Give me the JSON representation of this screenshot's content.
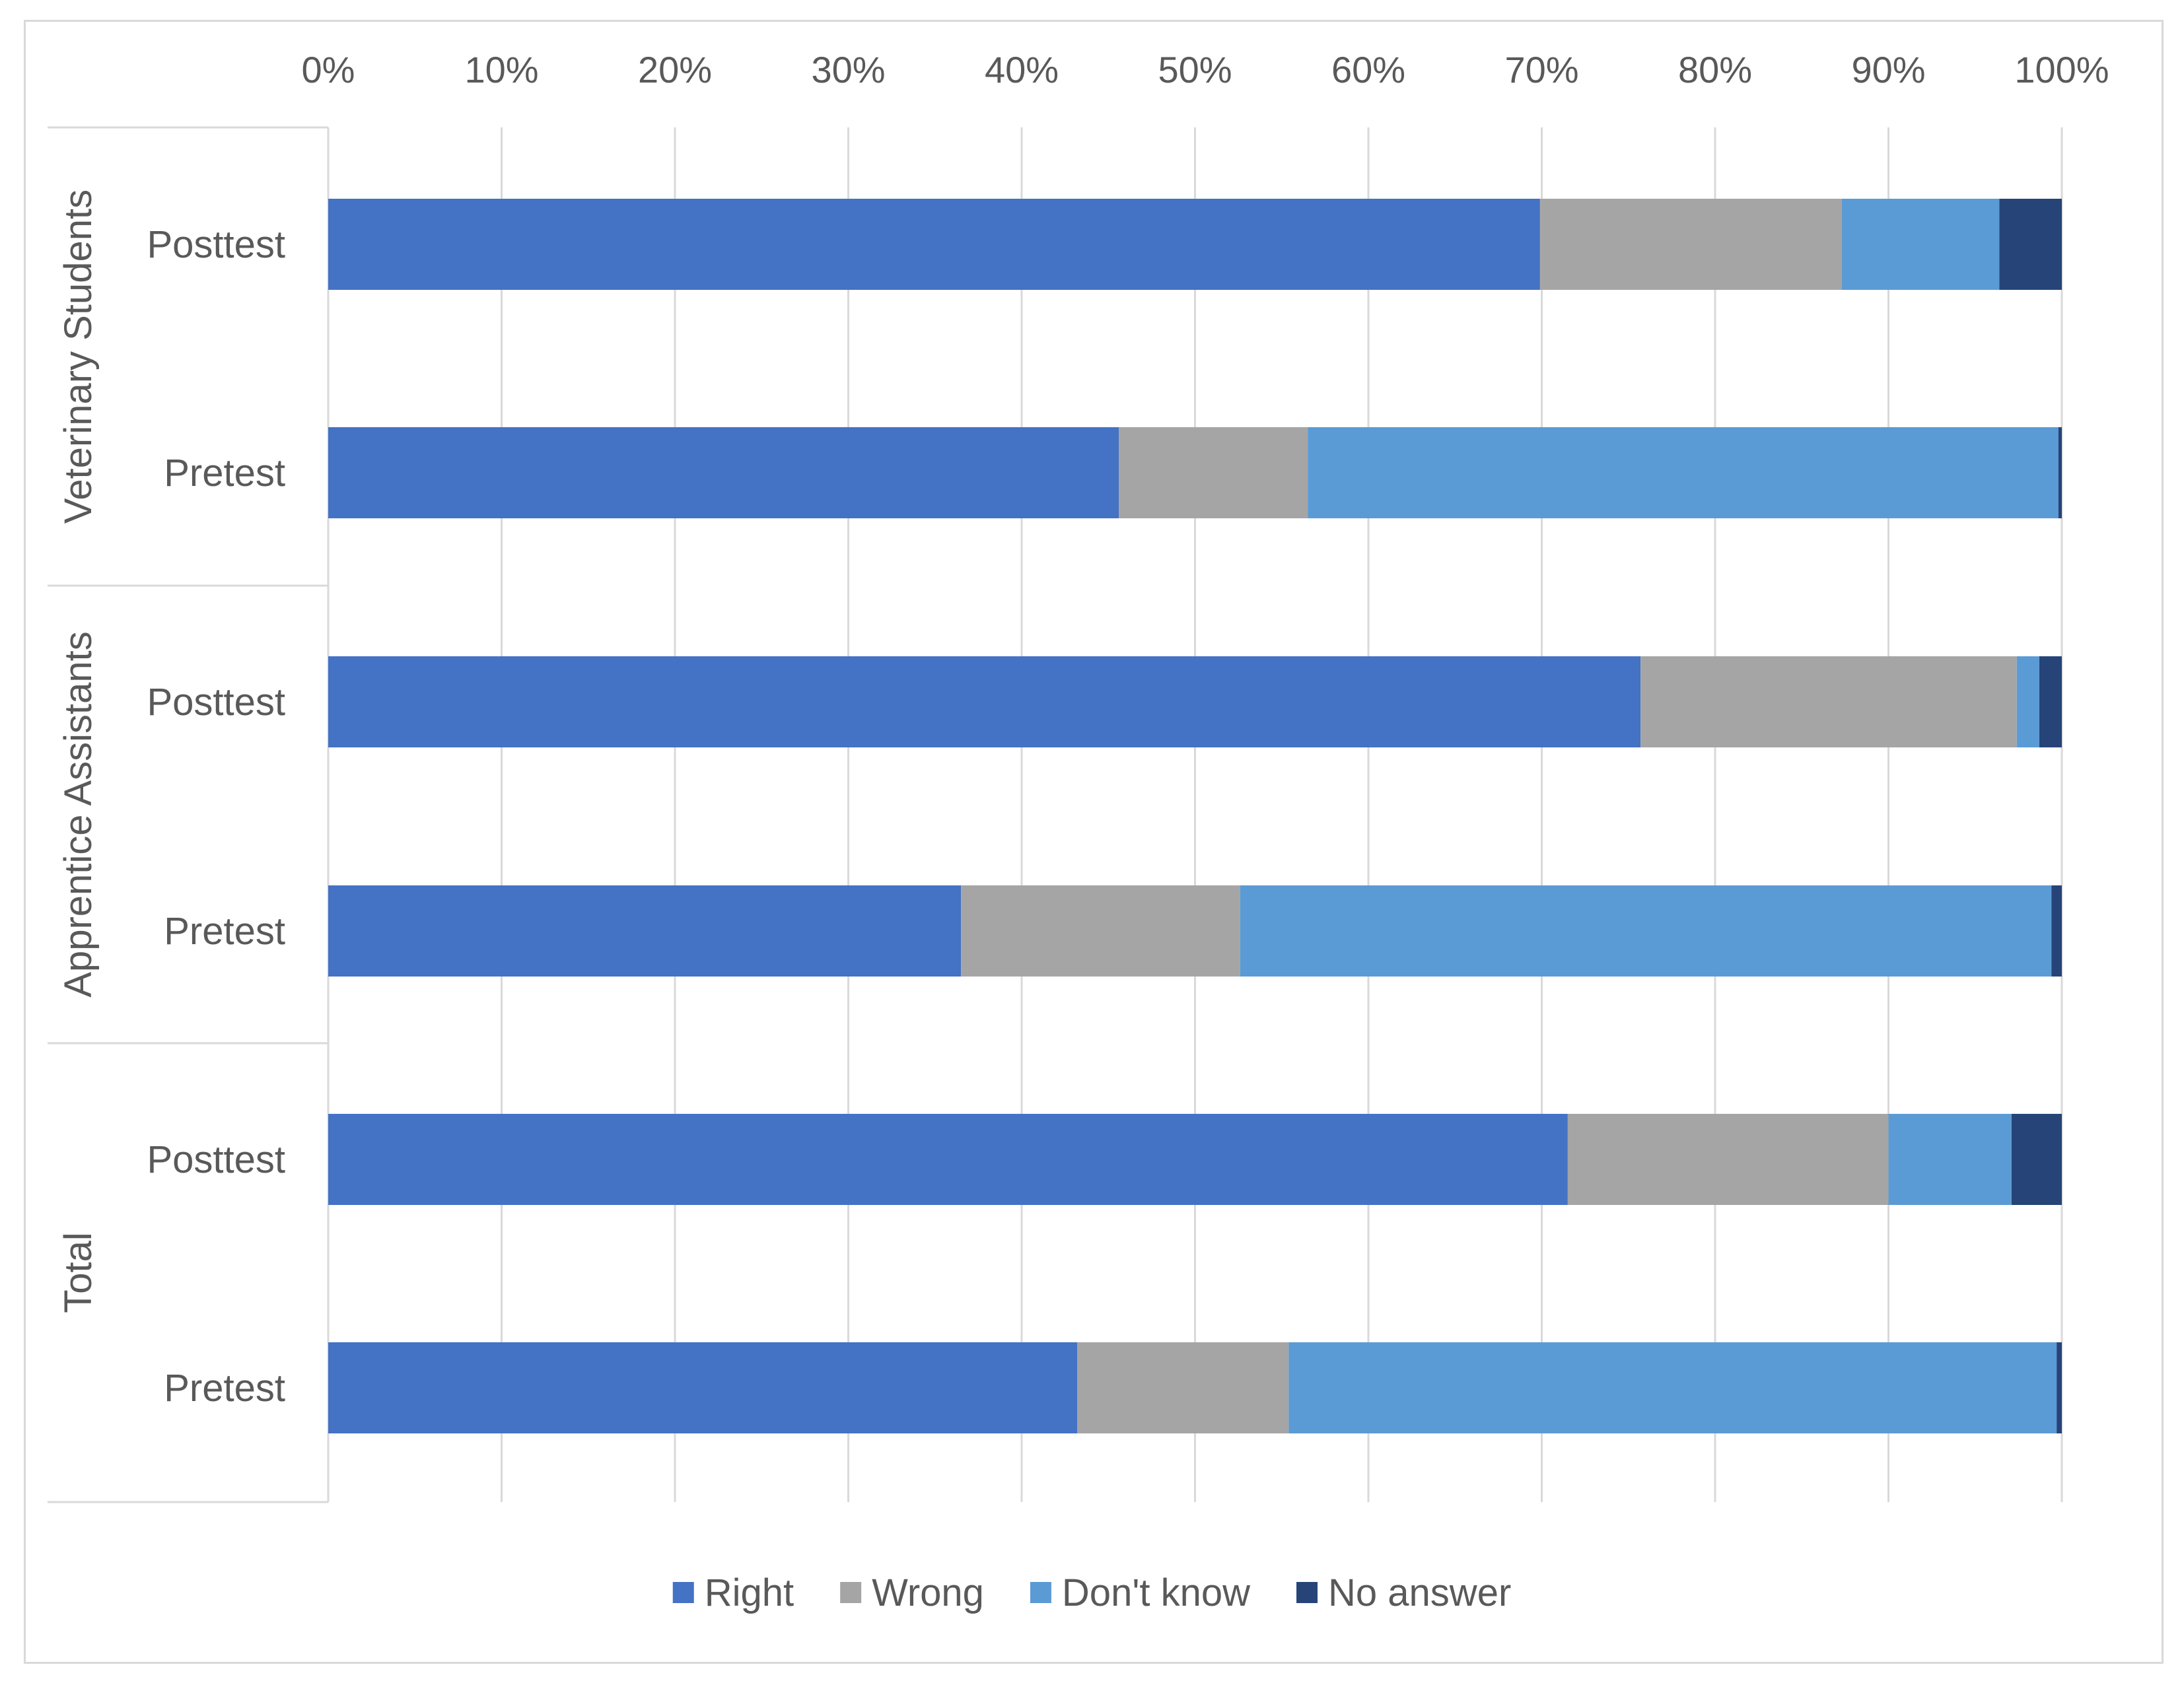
{
  "chart_data": {
    "type": "bar",
    "orientation": "horizontal",
    "stacked": "100%",
    "title": "",
    "xlabel": "",
    "ylabel": "",
    "xlim": [
      0,
      100
    ],
    "x_tick_labels": [
      "0%",
      "10%",
      "20%",
      "30%",
      "40%",
      "50%",
      "60%",
      "70%",
      "80%",
      "90%",
      "100%"
    ],
    "grid": true,
    "legend_position": "bottom",
    "groups": [
      {
        "name": "Veterinary Students",
        "categories": [
          {
            "label": "Posttest",
            "values": {
              "Right": 69.9,
              "Wrong": 17.4,
              "Don't know": 9.1,
              "No answer": 3.6
            }
          },
          {
            "label": "Pretest",
            "values": {
              "Right": 45.6,
              "Wrong": 10.9,
              "Don't know": 43.3,
              "No answer": 0.2
            }
          }
        ]
      },
      {
        "name": "Apprentice Assistants",
        "categories": [
          {
            "label": "Posttest",
            "values": {
              "Right": 75.7,
              "Wrong": 21.7,
              "Don't know": 1.3,
              "No answer": 1.3
            }
          },
          {
            "label": "Pretest",
            "values": {
              "Right": 36.5,
              "Wrong": 16.1,
              "Don't know": 46.8,
              "No answer": 0.6
            }
          }
        ]
      },
      {
        "name": "Total",
        "categories": [
          {
            "label": "Posttest",
            "values": {
              "Right": 71.5,
              "Wrong": 18.5,
              "Don't know": 7.1,
              "No answer": 2.9
            }
          },
          {
            "label": "Pretest",
            "values": {
              "Right": 43.2,
              "Wrong": 12.2,
              "Don't know": 44.3,
              "No answer": 0.3
            }
          }
        ]
      }
    ],
    "series": [
      {
        "name": "Right",
        "color": "#4472c4"
      },
      {
        "name": "Wrong",
        "color": "#a5a5a5"
      },
      {
        "name": "Don't know",
        "color": "#5b9bd5"
      },
      {
        "name": "No answer",
        "color": "#264478"
      }
    ]
  }
}
